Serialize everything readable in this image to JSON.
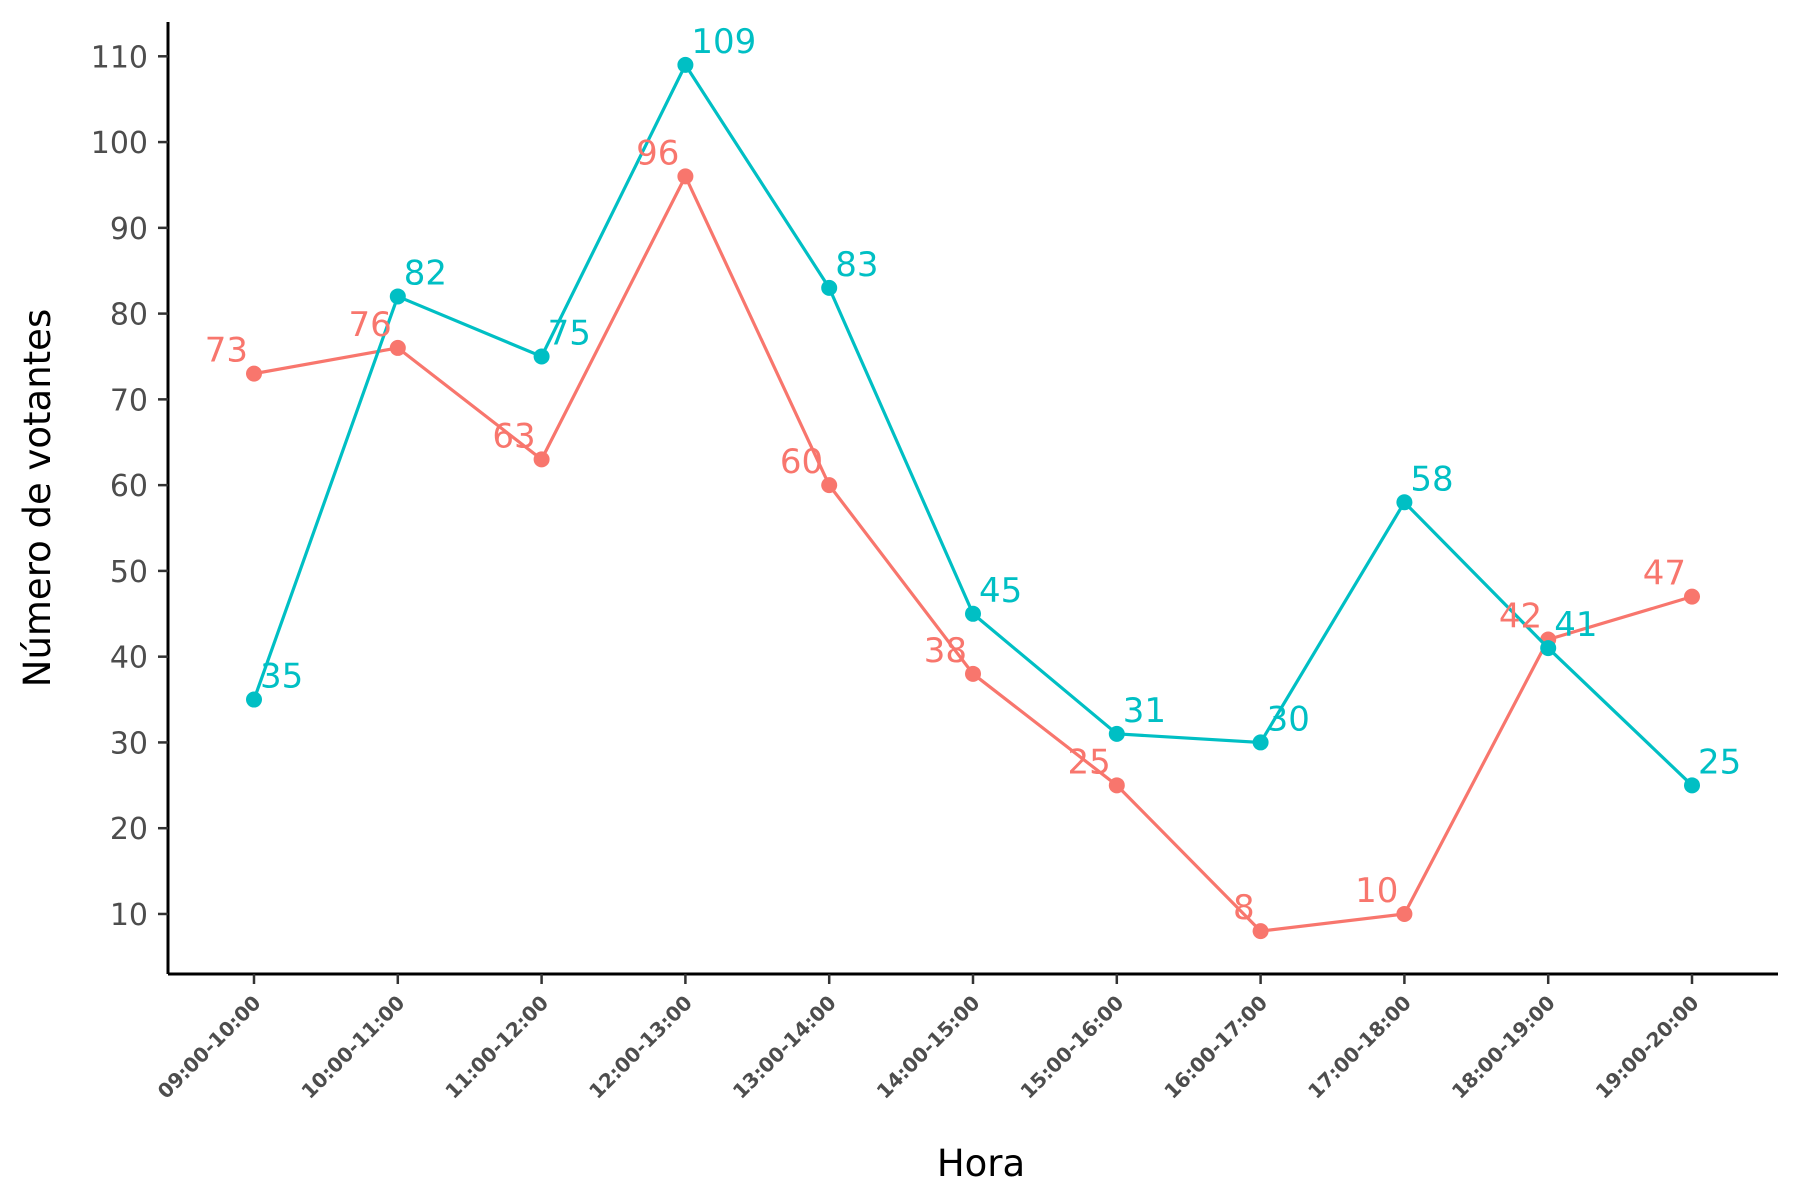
{
  "chart_data": {
    "type": "line",
    "title": "",
    "xlabel": "Hora",
    "ylabel": "Número de votantes",
    "categories": [
      "09:00-10:00",
      "10:00-11:00",
      "11:00-12:00",
      "12:00-13:00",
      "13:00-14:00",
      "14:00-15:00",
      "15:00-16:00",
      "16:00-17:00",
      "17:00-18:00",
      "18:00-19:00",
      "19:00-20:00"
    ],
    "yticks": [
      10,
      20,
      30,
      40,
      50,
      60,
      70,
      80,
      90,
      100,
      110
    ],
    "ylim": [
      3,
      114
    ],
    "grid": false,
    "legend": "none",
    "series": [
      {
        "color": "#F8766D",
        "values": [
          73,
          76,
          63,
          96,
          60,
          38,
          25,
          8,
          10,
          42,
          47
        ],
        "label_side": "left"
      },
      {
        "color": "#00BFC4",
        "values": [
          35,
          82,
          75,
          109,
          83,
          45,
          31,
          30,
          58,
          41,
          25
        ],
        "label_side": "right"
      }
    ]
  }
}
